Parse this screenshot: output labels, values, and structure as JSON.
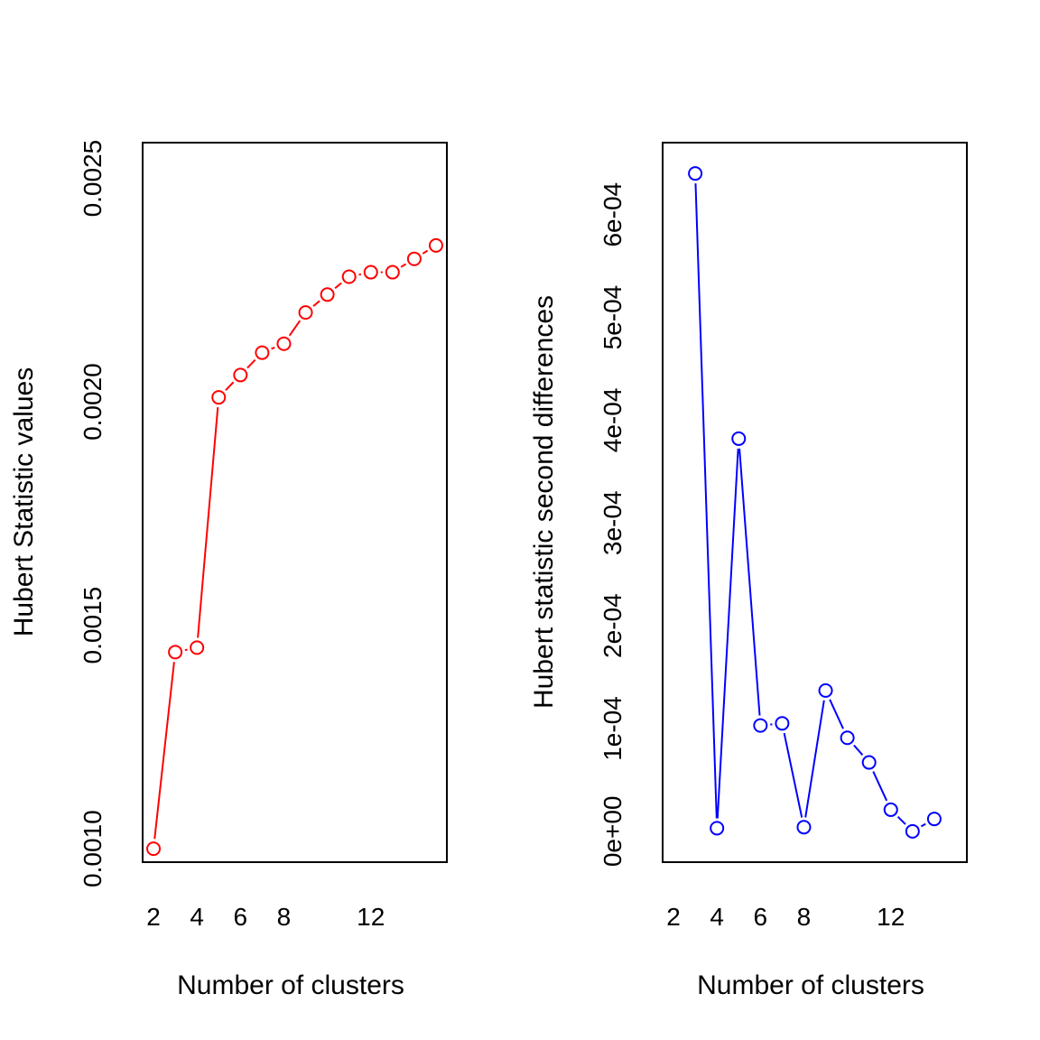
{
  "chart_data": [
    {
      "type": "line",
      "xlabel": "Number of clusters",
      "ylabel": "Hubert Statistic values",
      "x": [
        2,
        3,
        4,
        5,
        6,
        7,
        8,
        9,
        10,
        11,
        12,
        13,
        14,
        15
      ],
      "series": [
        {
          "color": "#ff0000",
          "marker": "open-circle",
          "values": [
            0.001,
            0.00144,
            0.00145,
            0.00201,
            0.00206,
            0.00211,
            0.00213,
            0.0022,
            0.00224,
            0.00228,
            0.00229,
            0.00229,
            0.00232,
            0.00235
          ]
        }
      ],
      "xlim": [
        1.5,
        15.5
      ],
      "ylim": [
        0.00097,
        0.00258
      ],
      "x_ticks": [
        2,
        4,
        6,
        8,
        12
      ],
      "x_tick_labels": [
        "2",
        "4",
        "6",
        "8",
        "12"
      ],
      "y_ticks": [
        0.001,
        0.0015,
        0.002,
        0.0025
      ],
      "y_tick_labels": [
        "0.0010",
        "0.0015",
        "0.0020",
        "0.0025"
      ],
      "grid": false,
      "legend": "none"
    },
    {
      "type": "line",
      "xlabel": "Number of clusters",
      "ylabel": "Hubert statistic second differences",
      "x": [
        3,
        4,
        5,
        6,
        7,
        8,
        9,
        10,
        11,
        12,
        13,
        14
      ],
      "series": [
        {
          "color": "#0000ff",
          "marker": "open-circle",
          "values": [
            0.00064,
            3e-06,
            0.000382,
            0.000103,
            0.000105,
            4e-06,
            0.000137,
            9.1e-05,
            6.7e-05,
            2.1e-05,
            0.0,
            1.2e-05
          ]
        }
      ],
      "xlim": [
        1.5,
        15.5
      ],
      "ylim": [
        -3e-05,
        0.00067
      ],
      "x_ticks": [
        2,
        4,
        6,
        8,
        12
      ],
      "x_tick_labels": [
        "2",
        "4",
        "6",
        "8",
        "12"
      ],
      "y_ticks": [
        0.0,
        0.0001,
        0.0002,
        0.0003,
        0.0004,
        0.0005,
        0.0006
      ],
      "y_tick_labels": [
        "0e+00",
        "1e-04",
        "2e-04",
        "3e-04",
        "4e-04",
        "5e-04",
        "6e-04"
      ],
      "grid": false,
      "legend": "none"
    }
  ]
}
